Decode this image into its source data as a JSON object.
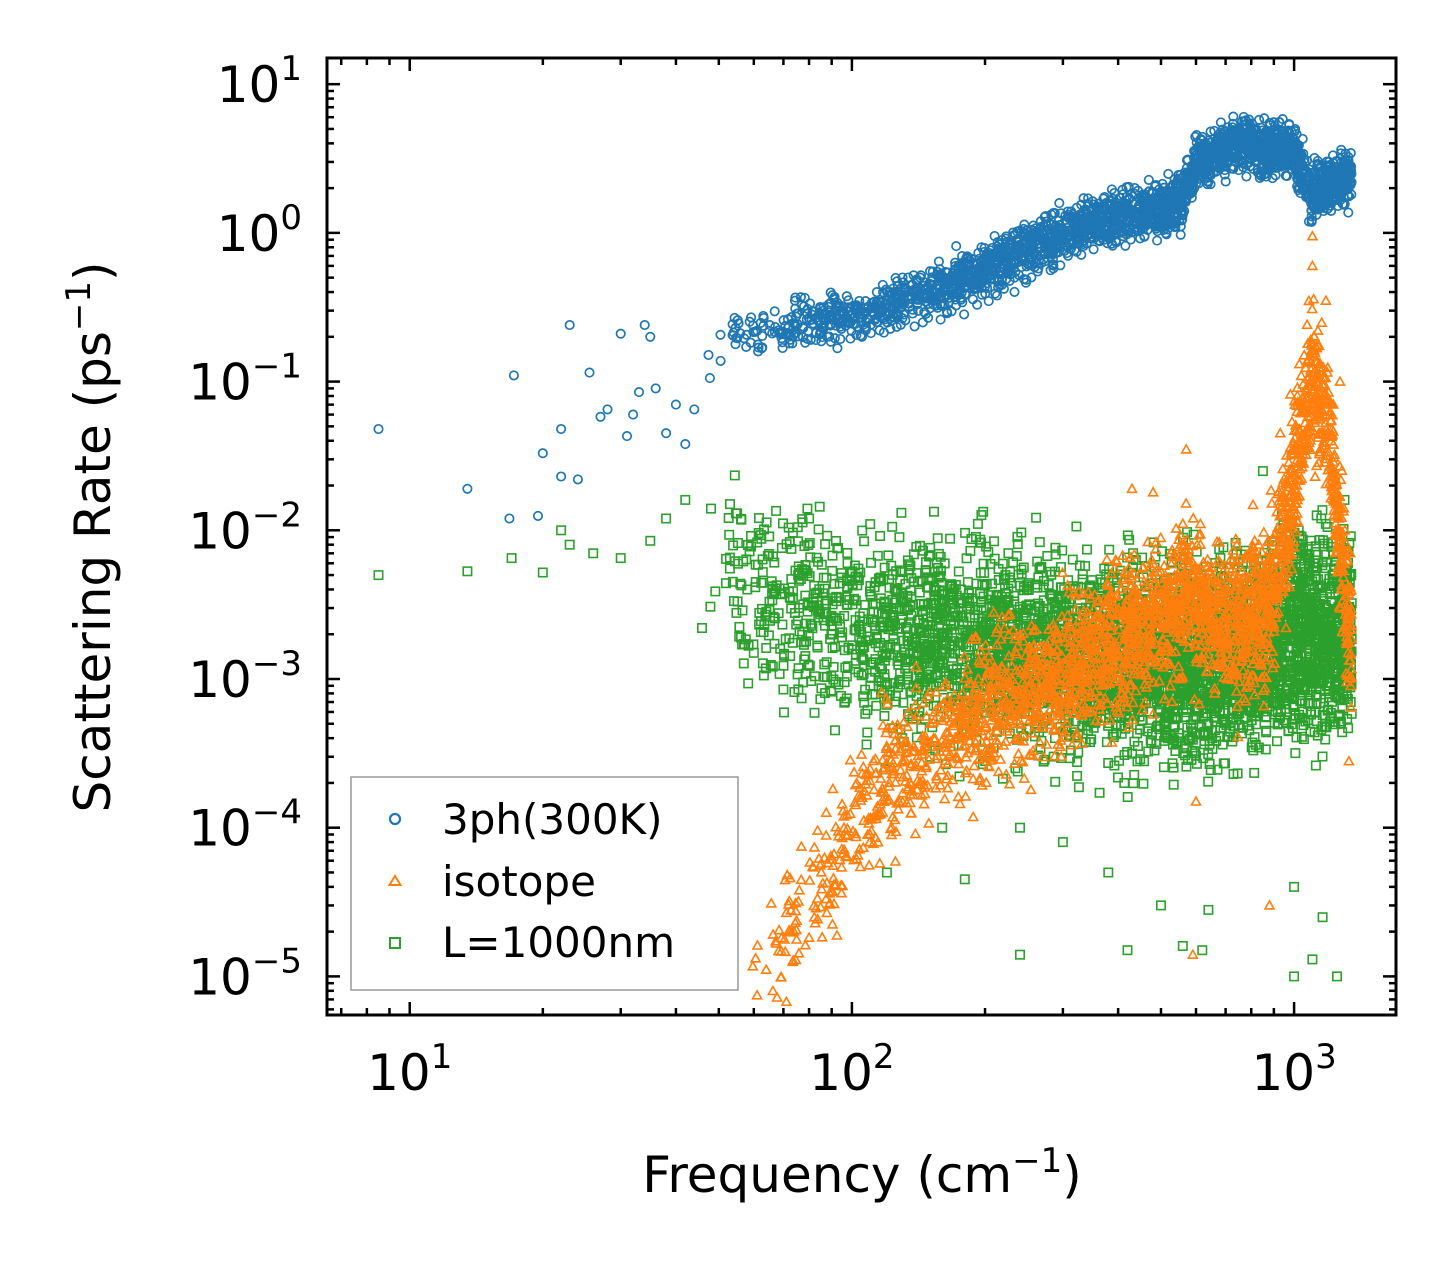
{
  "chart_data": {
    "type": "scatter",
    "title": "",
    "xlabel": "Frequency (cm",
    "xlabel_unit_exp": "−1",
    "xlabel_end": ")",
    "ylabel": "Scattering Rate (ps",
    "ylabel_unit_exp": "−1",
    "ylabel_end": ")",
    "xscale": "log",
    "yscale": "log",
    "xlim": [
      6.5,
      1700
    ],
    "ylim": [
      5.5e-06,
      15
    ],
    "x_ticks": [
      {
        "value": 10,
        "base": "10",
        "exp": "1"
      },
      {
        "value": 100,
        "base": "10",
        "exp": "2"
      },
      {
        "value": 1000,
        "base": "10",
        "exp": "3"
      }
    ],
    "y_ticks": [
      {
        "value": 1e-05,
        "base": "10",
        "exp": "−5"
      },
      {
        "value": 0.0001,
        "base": "10",
        "exp": "−4"
      },
      {
        "value": 0.001,
        "base": "10",
        "exp": "−3"
      },
      {
        "value": 0.01,
        "base": "10",
        "exp": "−2"
      },
      {
        "value": 0.1,
        "base": "10",
        "exp": "−1"
      },
      {
        "value": 1,
        "base": "10",
        "exp": "0"
      },
      {
        "value": 10,
        "base": "10",
        "exp": "1"
      }
    ],
    "legend_position": "bottom-left",
    "series": [
      {
        "name": "3ph(300K)",
        "color": "#1f77b4",
        "marker": "circle",
        "x_range": [
          8.5,
          1350
        ],
        "trend": [
          [
            8.5,
            0.048
          ],
          [
            13,
            0.019
          ],
          [
            17,
            0.11
          ],
          [
            22,
            0.05
          ],
          [
            30,
            0.1
          ],
          [
            45,
            0.14
          ],
          [
            60,
            0.22
          ],
          [
            100,
            0.28
          ],
          [
            150,
            0.4
          ],
          [
            200,
            0.55
          ],
          [
            300,
            1.0
          ],
          [
            400,
            1.3
          ],
          [
            550,
            1.5
          ],
          [
            600,
            3.0
          ],
          [
            750,
            4.0
          ],
          [
            1000,
            3.5
          ],
          [
            1100,
            1.8
          ],
          [
            1350,
            2.5
          ]
        ],
        "points": [
          [
            8.5,
            0.048
          ],
          [
            13.5,
            0.019
          ],
          [
            16.8,
            0.012
          ],
          [
            17.2,
            0.11
          ],
          [
            19.5,
            0.0125
          ],
          [
            20,
            0.033
          ],
          [
            22,
            0.048
          ],
          [
            22,
            0.023
          ],
          [
            23,
            0.24
          ],
          [
            24,
            0.022
          ],
          [
            25.5,
            0.115
          ],
          [
            27,
            0.058
          ],
          [
            28,
            0.065
          ],
          [
            30,
            0.21
          ],
          [
            31,
            0.043
          ],
          [
            32,
            0.06
          ],
          [
            33,
            0.085
          ],
          [
            34,
            0.24
          ],
          [
            35,
            0.2
          ],
          [
            36,
            0.09
          ],
          [
            38,
            0.045
          ],
          [
            40,
            0.07
          ],
          [
            42,
            0.038
          ],
          [
            44,
            0.065
          ]
        ]
      },
      {
        "name": "isotope",
        "color": "#ff7f0e",
        "marker": "triangle",
        "x_range": [
          58,
          1350
        ],
        "trend": [
          [
            58,
            1e-05
          ],
          [
            70,
            1.8e-05
          ],
          [
            90,
            6e-05
          ],
          [
            120,
            0.00022
          ],
          [
            200,
            0.0006
          ],
          [
            300,
            0.001
          ],
          [
            400,
            0.0018
          ],
          [
            500,
            0.0025
          ],
          [
            580,
            0.004
          ],
          [
            700,
            0.0022
          ],
          [
            900,
            0.0035
          ],
          [
            1100,
            0.12
          ],
          [
            1200,
            0.05
          ],
          [
            1350,
            0.0015
          ]
        ],
        "points": [
          [
            430,
            0.019
          ],
          [
            480,
            0.018
          ],
          [
            570,
            0.035
          ],
          [
            930,
            0.045
          ],
          [
            1100,
            0.95
          ],
          [
            1100,
            0.6
          ],
          [
            1270,
            0.1
          ],
          [
            1180,
            0.35
          ],
          [
            600,
            0.00015
          ],
          [
            880,
            3e-05
          ],
          [
            590,
            1.4e-05
          ],
          [
            1330,
            0.00028
          ]
        ]
      },
      {
        "name": "L=1000nm",
        "color": "#2ca02c",
        "marker": "square",
        "x_range": [
          8.5,
          1350
        ],
        "trend": [
          [
            8.5,
            0.005
          ],
          [
            13.5,
            0.0053
          ],
          [
            20,
            0.007
          ],
          [
            40,
            0.006
          ],
          [
            60,
            0.004
          ],
          [
            100,
            0.002
          ],
          [
            200,
            0.0018
          ],
          [
            300,
            0.0015
          ],
          [
            500,
            0.0012
          ],
          [
            800,
            0.0015
          ],
          [
            1000,
            0.002
          ],
          [
            1350,
            0.002
          ]
        ],
        "points": [
          [
            8.5,
            0.005
          ],
          [
            13.5,
            0.0053
          ],
          [
            17,
            0.0065
          ],
          [
            20,
            0.0052
          ],
          [
            22,
            0.01
          ],
          [
            23,
            0.008
          ],
          [
            26,
            0.007
          ],
          [
            30,
            0.0065
          ],
          [
            35,
            0.0085
          ],
          [
            38,
            0.012
          ],
          [
            42,
            0.016
          ],
          [
            48,
            0.014
          ],
          [
            53,
            0.015
          ],
          [
            55,
            0.013
          ],
          [
            58,
            0.004
          ],
          [
            60,
            0.0015
          ],
          [
            70,
            0.00085
          ],
          [
            80,
            0.012
          ],
          [
            110,
            0.011
          ],
          [
            130,
            0.0004
          ],
          [
            150,
            0.0003
          ],
          [
            160,
            0.0001
          ],
          [
            120,
            5e-05
          ],
          [
            180,
            4.5e-05
          ],
          [
            240,
            1.4e-05
          ],
          [
            240,
            0.0001
          ],
          [
            300,
            8e-05
          ],
          [
            380,
            5e-05
          ],
          [
            420,
            1.5e-05
          ],
          [
            500,
            3e-05
          ],
          [
            560,
            1.6e-05
          ],
          [
            620,
            1.5e-05
          ],
          [
            640,
            2.8e-05
          ],
          [
            850,
            0.025
          ],
          [
            1000,
            1e-05
          ],
          [
            1000,
            4e-05
          ],
          [
            1100,
            1.3e-05
          ],
          [
            1160,
            2.5e-05
          ],
          [
            1250,
            1e-05
          ],
          [
            1300,
            0.016
          ],
          [
            1320,
            0.004
          ]
        ]
      }
    ]
  }
}
